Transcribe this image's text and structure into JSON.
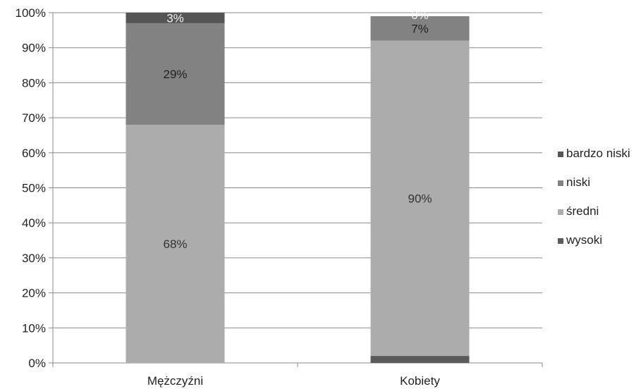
{
  "chart_data": {
    "type": "bar",
    "stacked": true,
    "categories": [
      "Mężczyźni",
      "Kobiety"
    ],
    "series": [
      {
        "name": "wysoki",
        "values": [
          0,
          2
        ],
        "color": "#5b5b5b",
        "labels": [
          "",
          ""
        ],
        "label_color": "#333333"
      },
      {
        "name": "średni",
        "values": [
          68,
          90
        ],
        "color": "#acacac",
        "labels": [
          "68%",
          "90%"
        ],
        "label_color": "#333333"
      },
      {
        "name": "niski",
        "values": [
          29,
          7
        ],
        "color": "#828282",
        "labels": [
          "29%",
          "7%"
        ],
        "label_color": "#222222"
      },
      {
        "name": "bardzo niski",
        "values": [
          3,
          0
        ],
        "color": "#555555",
        "labels": [
          "3%",
          "0%"
        ],
        "label_color": "#f2f2f2"
      }
    ],
    "legend_order": [
      "bardzo niski",
      "niski",
      "średni",
      "wysoki"
    ],
    "ylim": [
      0,
      100
    ],
    "yticks": [
      "0%",
      "10%",
      "20%",
      "30%",
      "40%",
      "50%",
      "60%",
      "70%",
      "80%",
      "90%",
      "100%"
    ],
    "grid": true,
    "legend_position": "right",
    "title": "",
    "xlabel": "",
    "ylabel": ""
  }
}
